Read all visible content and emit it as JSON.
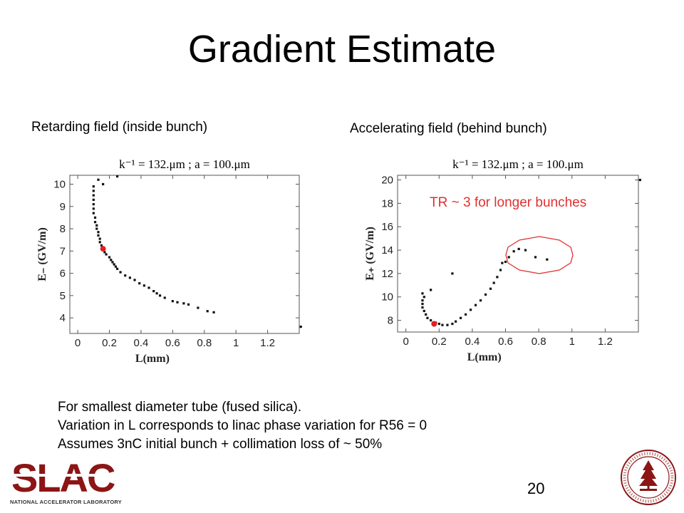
{
  "slide": {
    "title": "Gradient Estimate",
    "page_number": "20"
  },
  "panels": {
    "left_label": "Retarding field (inside bunch)",
    "right_label": "Accelerating field (behind bunch)"
  },
  "annotation": {
    "text": "TR ~ 3 for longer bunches",
    "color": "#e03030"
  },
  "notes": [
    "For smallest diameter tube (fused silica).",
    "Variation in L corresponds to linac phase variation for R56 = 0",
    "Assumes 3nC initial bunch + collimation loss of ~ 50%"
  ],
  "logo": {
    "name": "SLAC",
    "subtitle": "NATIONAL ACCELERATOR LABORATORY",
    "color": "#8c1515"
  },
  "seal": {
    "name": "Stanford University seal",
    "color": "#8c1515"
  },
  "chart_data": [
    {
      "type": "scatter",
      "title": "k⁻¹ = 132.μm ; a = 100.μm",
      "xlabel": "L(mm)",
      "ylabel": "E₋ (GV/m)",
      "xlim": [
        -0.05,
        1.4
      ],
      "ylim": [
        3.3,
        10.4
      ],
      "x_ticks": [
        0,
        0.2,
        0.4,
        0.6,
        0.8,
        1,
        1.2
      ],
      "x_tick_labels": [
        "0",
        "0.2",
        "0.4",
        "0.6",
        "0.8",
        "1",
        "1.2"
      ],
      "y_ticks": [
        4,
        5,
        6,
        7,
        8,
        9,
        10
      ],
      "y_tick_labels": [
        "4",
        "5",
        "6",
        "7",
        "8",
        "9",
        "10"
      ],
      "grid": false,
      "points": [
        [
          0.13,
          10.2
        ],
        [
          0.16,
          10.0
        ],
        [
          0.25,
          10.35
        ],
        [
          0.1,
          9.9
        ],
        [
          0.1,
          9.7
        ],
        [
          0.1,
          9.5
        ],
        [
          0.1,
          9.3
        ],
        [
          0.1,
          9.1
        ],
        [
          0.1,
          8.9
        ],
        [
          0.1,
          8.7
        ],
        [
          0.11,
          8.5
        ],
        [
          0.11,
          8.3
        ],
        [
          0.12,
          8.15
        ],
        [
          0.12,
          8.0
        ],
        [
          0.13,
          7.85
        ],
        [
          0.13,
          7.7
        ],
        [
          0.14,
          7.55
        ],
        [
          0.14,
          7.4
        ],
        [
          0.15,
          7.25
        ],
        [
          0.17,
          6.95
        ],
        [
          0.18,
          6.85
        ],
        [
          0.2,
          6.72
        ],
        [
          0.21,
          6.6
        ],
        [
          0.22,
          6.5
        ],
        [
          0.23,
          6.4
        ],
        [
          0.24,
          6.3
        ],
        [
          0.25,
          6.2
        ],
        [
          0.27,
          6.05
        ],
        [
          0.3,
          5.9
        ],
        [
          0.33,
          5.8
        ],
        [
          0.36,
          5.7
        ],
        [
          0.39,
          5.55
        ],
        [
          0.42,
          5.45
        ],
        [
          0.45,
          5.35
        ],
        [
          0.48,
          5.2
        ],
        [
          0.5,
          5.1
        ],
        [
          0.52,
          5.0
        ],
        [
          0.55,
          4.9
        ],
        [
          0.6,
          4.75
        ],
        [
          0.63,
          4.7
        ],
        [
          0.67,
          4.65
        ],
        [
          0.7,
          4.6
        ],
        [
          0.76,
          4.45
        ],
        [
          0.82,
          4.3
        ],
        [
          0.86,
          4.25
        ],
        [
          1.41,
          3.6
        ]
      ],
      "highlight": {
        "x": 0.16,
        "y": 7.1,
        "color": "#e02020"
      }
    },
    {
      "type": "scatter",
      "title": "k⁻¹ = 132.μm ; a = 100.μm",
      "xlabel": "L(mm)",
      "ylabel": "E₊ (GV/m)",
      "xlim": [
        -0.05,
        1.4
      ],
      "ylim": [
        7.0,
        20.4
      ],
      "x_ticks": [
        0,
        0.2,
        0.4,
        0.6,
        0.8,
        1,
        1.2
      ],
      "x_tick_labels": [
        "0",
        "0.2",
        "0.4",
        "0.6",
        "0.8",
        "1",
        "1.2"
      ],
      "y_ticks": [
        8,
        10,
        12,
        14,
        16,
        18,
        20
      ],
      "y_tick_labels": [
        "8",
        "10",
        "12",
        "14",
        "16",
        "18",
        "20"
      ],
      "grid": false,
      "points": [
        [
          0.1,
          10.3
        ],
        [
          0.11,
          10.0
        ],
        [
          0.1,
          9.7
        ],
        [
          0.1,
          9.4
        ],
        [
          0.1,
          9.1
        ],
        [
          0.11,
          8.8
        ],
        [
          0.12,
          8.5
        ],
        [
          0.13,
          8.2
        ],
        [
          0.15,
          8.0
        ],
        [
          0.18,
          7.8
        ],
        [
          0.2,
          7.7
        ],
        [
          0.22,
          7.6
        ],
        [
          0.25,
          7.6
        ],
        [
          0.28,
          7.7
        ],
        [
          0.3,
          7.9
        ],
        [
          0.33,
          8.2
        ],
        [
          0.36,
          8.5
        ],
        [
          0.39,
          8.9
        ],
        [
          0.42,
          9.3
        ],
        [
          0.45,
          9.7
        ],
        [
          0.48,
          10.2
        ],
        [
          0.51,
          10.7
        ],
        [
          0.53,
          11.2
        ],
        [
          0.55,
          11.7
        ],
        [
          0.57,
          12.3
        ],
        [
          0.58,
          12.9
        ],
        [
          0.6,
          13.0
        ],
        [
          0.62,
          13.4
        ],
        [
          0.65,
          13.9
        ],
        [
          0.68,
          14.1
        ],
        [
          0.72,
          14.0
        ],
        [
          0.78,
          13.4
        ],
        [
          0.85,
          13.2
        ],
        [
          0.28,
          12.0
        ],
        [
          0.15,
          10.6
        ],
        [
          1.41,
          20.0
        ]
      ],
      "highlight": {
        "x": 0.17,
        "y": 7.7,
        "color": "#e02020"
      }
    }
  ]
}
